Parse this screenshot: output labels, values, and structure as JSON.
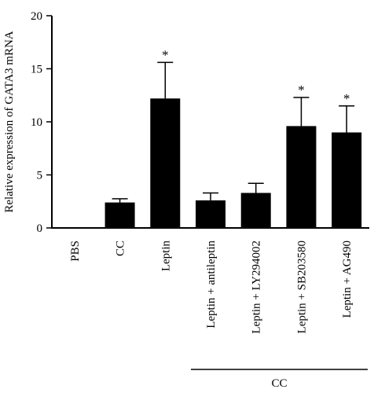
{
  "chart_data": {
    "type": "bar",
    "ylabel": "Relative expression of GATA3 mRNA",
    "xlabel": "",
    "ylim": [
      0,
      20
    ],
    "yticks": [
      0,
      5,
      10,
      15,
      20
    ],
    "categories": [
      "PBS",
      "CC",
      "Leptin",
      "Leptin + antileptin",
      "Leptin + LY294002",
      "Leptin + SB203580",
      "Leptin + AG490"
    ],
    "values": [
      0,
      2.4,
      12.2,
      2.6,
      3.3,
      9.6,
      9.0
    ],
    "errors": [
      0,
      0.35,
      3.4,
      0.7,
      0.9,
      2.7,
      2.5
    ],
    "significance": [
      "",
      "",
      "*",
      "",
      "",
      "*",
      "*"
    ],
    "group_label": "CC",
    "group_start_index": 3,
    "group_end_index": 6,
    "colors": {
      "bar": "#000000",
      "axis": "#000000"
    }
  }
}
